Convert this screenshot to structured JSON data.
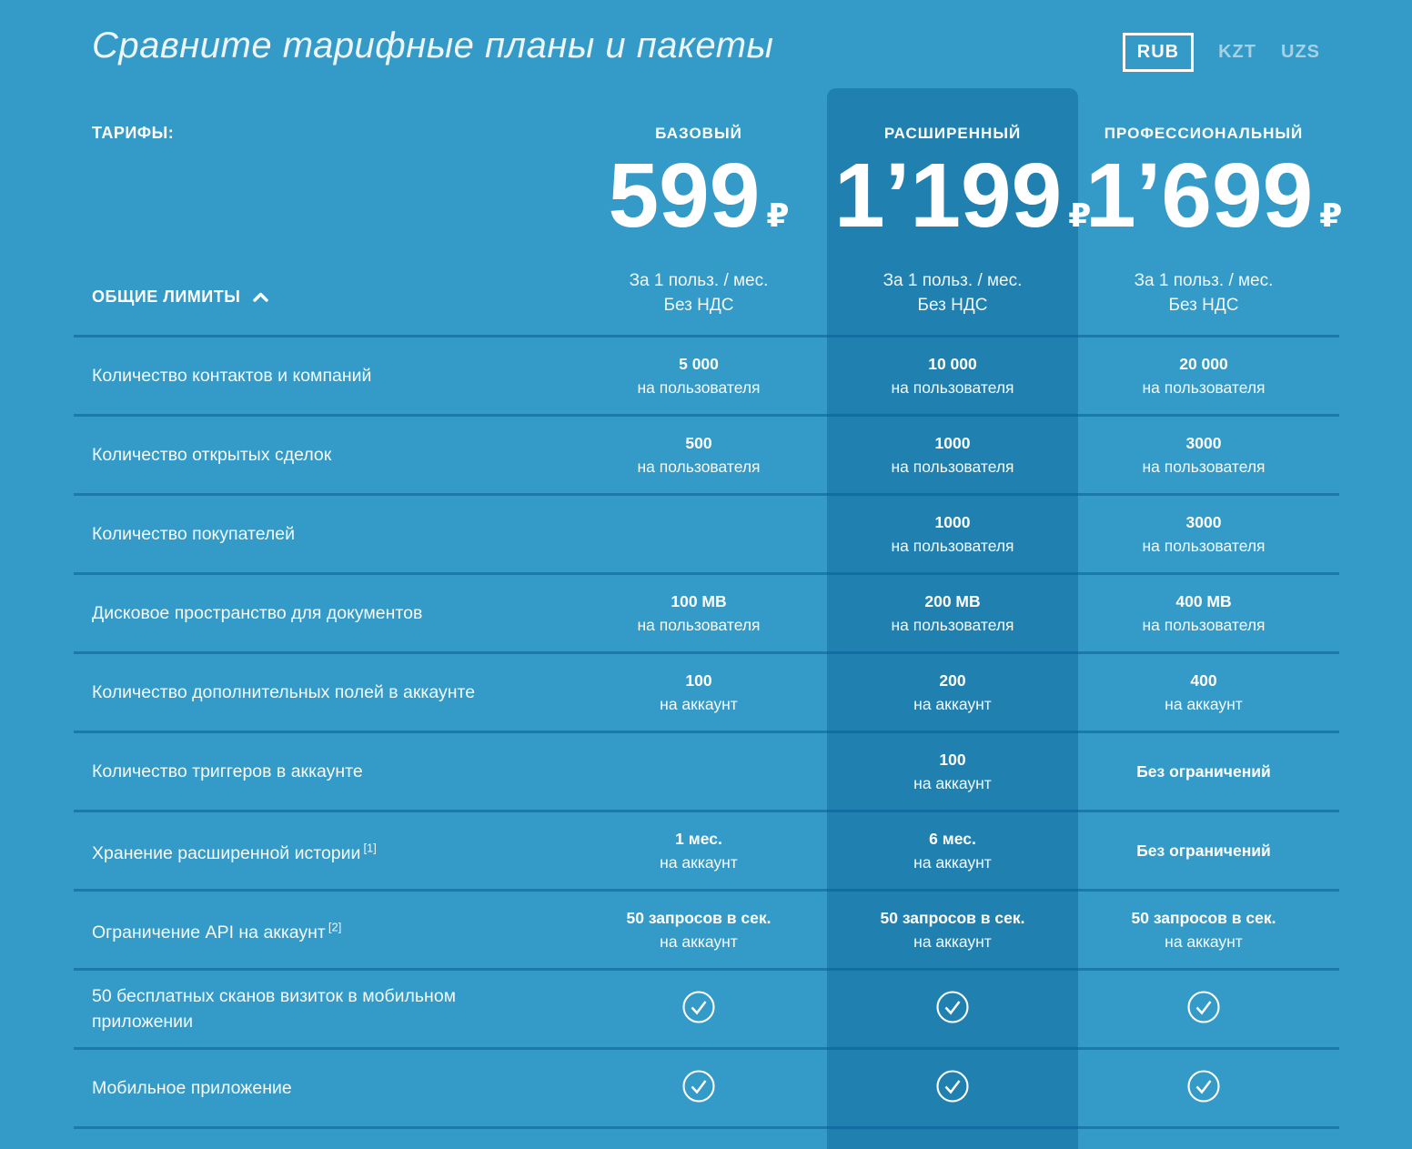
{
  "page": {
    "title": "Сравните тарифные планы и пакеты"
  },
  "colors": {
    "background": "#349ac7",
    "highlight_column": "#2081b1",
    "divider": "#1b79ac",
    "selected_currency_border": "#ffffff"
  },
  "currency_switcher": {
    "selected": "RUB",
    "options": [
      {
        "code": "RUB",
        "selected": true
      },
      {
        "code": "KZT",
        "selected": false
      },
      {
        "code": "UZS",
        "selected": false
      }
    ]
  },
  "tariffs_label": "ТАРИФЫ:",
  "plans": [
    {
      "name": "БАЗОВЫЙ",
      "price": "599",
      "currency_symbol": "₽",
      "per_user": "За 1 польз. / мес.",
      "vat": "Без НДС",
      "highlighted": false
    },
    {
      "name": "РАСШИРЕННЫЙ",
      "price": "1’199",
      "currency_symbol": "₽",
      "per_user": "За 1 польз. / мес.",
      "vat": "Без НДС",
      "highlighted": true
    },
    {
      "name": "ПРОФЕССИОНАЛЬНЫЙ",
      "price": "1’699",
      "currency_symbol": "₽",
      "per_user": "За 1 польз. / мес.",
      "vat": "Без НДС",
      "highlighted": false
    }
  ],
  "section": {
    "title": "ОБЩИЕ ЛИМИТЫ",
    "state": "expanded",
    "chevron": "chevron-up-icon"
  },
  "table": {
    "rows": [
      {
        "label": "Количество контактов и компаний",
        "cells": [
          {
            "value": "5 000",
            "unit": "на пользователя"
          },
          {
            "value": "10 000",
            "unit": "на пользователя"
          },
          {
            "value": "20 000",
            "unit": "на пользователя"
          }
        ]
      },
      {
        "label": "Количество открытых сделок",
        "cells": [
          {
            "value": "500",
            "unit": "на пользователя"
          },
          {
            "value": "1000",
            "unit": "на пользователя"
          },
          {
            "value": "3000",
            "unit": "на пользователя"
          }
        ]
      },
      {
        "label": "Количество покупателей",
        "cells": [
          null,
          {
            "value": "1000",
            "unit": "на пользователя"
          },
          {
            "value": "3000",
            "unit": "на пользователя"
          }
        ]
      },
      {
        "label": "Дисковое пространство для документов",
        "cells": [
          {
            "value": "100 MB",
            "unit": "на пользователя"
          },
          {
            "value": "200 MB",
            "unit": "на пользователя"
          },
          {
            "value": "400 MB",
            "unit": "на пользователя"
          }
        ]
      },
      {
        "label": "Количество дополнительных полей в аккаунте",
        "cells": [
          {
            "value": "100",
            "unit": "на аккаунт"
          },
          {
            "value": "200",
            "unit": "на аккаунт"
          },
          {
            "value": "400",
            "unit": "на аккаунт"
          }
        ]
      },
      {
        "label": "Количество триггеров в аккаунте",
        "cells": [
          null,
          {
            "value": "100",
            "unit": "на аккаунт"
          },
          {
            "value": "Без ограничений"
          }
        ]
      },
      {
        "label": "Хранение расширенной истории",
        "note": "[1]",
        "cells": [
          {
            "value": "1 мес.",
            "unit": "на аккаунт"
          },
          {
            "value": "6 мес.",
            "unit": "на аккаунт"
          },
          {
            "value": "Без ограничений"
          }
        ]
      },
      {
        "label": "Ограничение API на аккаунт",
        "note": "[2]",
        "cells": [
          {
            "value": "50 запросов в сек.",
            "unit": "на аккаунт"
          },
          {
            "value": "50 запросов в сек.",
            "unit": "на аккаунт"
          },
          {
            "value": "50 запросов в сек.",
            "unit": "на аккаунт"
          }
        ]
      },
      {
        "label": "50 бесплатных сканов визиток в мобильном приложении",
        "cells": [
          {
            "check": true
          },
          {
            "check": true
          },
          {
            "check": true
          }
        ]
      },
      {
        "label": "Мобильное приложение",
        "cells": [
          {
            "check": true
          },
          {
            "check": true
          },
          {
            "check": true
          }
        ]
      }
    ]
  }
}
